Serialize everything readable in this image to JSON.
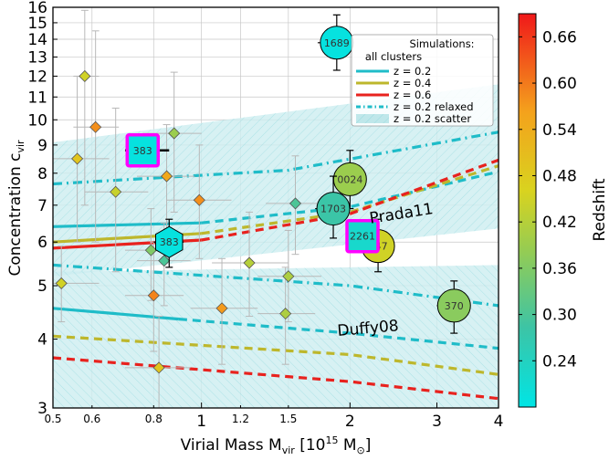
{
  "chart_data": {
    "type": "scatter",
    "xscale": "log",
    "yscale": "log",
    "xlim": [
      0.5,
      4.0
    ],
    "ylim": [
      3.0,
      16.0
    ],
    "xticks": [
      {
        "v": 0.5,
        "label": "0.5",
        "major": false
      },
      {
        "v": 0.6,
        "label": "0.6",
        "major": false
      },
      {
        "v": 0.8,
        "label": "0.8",
        "major": false
      },
      {
        "v": 1.0,
        "label": "1",
        "major": true
      },
      {
        "v": 1.2,
        "label": "1.2",
        "major": false
      },
      {
        "v": 1.5,
        "label": "1.5",
        "major": false
      },
      {
        "v": 2.0,
        "label": "2",
        "major": true
      },
      {
        "v": 3.0,
        "label": "3",
        "major": true
      },
      {
        "v": 4.0,
        "label": "4",
        "major": true
      }
    ],
    "yticks": [
      "3",
      "4",
      "5",
      "6",
      "7",
      "8",
      "9",
      "10",
      "11",
      "12",
      "13",
      "14",
      "15",
      "16"
    ],
    "xlabel": "Virial Mass M",
    "xlabel_sub": "vir",
    "xlabel_unit": " [10",
    "xlabel_exp": "15",
    "xlabel_unit2": " M",
    "xlabel_sun": "⊙",
    "xlabel_end": "]",
    "ylabel": "Concentration  c",
    "ylabel_sub": "vir",
    "colorbar": {
      "label": "Redshift",
      "range": [
        0.18,
        0.69
      ],
      "ticks": [
        "0.24",
        "0.30",
        "0.36",
        "0.42",
        "0.48",
        "0.54",
        "0.60",
        "0.66"
      ]
    },
    "legend": {
      "position": "top-right",
      "title1": "Simulations:",
      "title2": "all clusters",
      "entries": [
        {
          "label": "z = 0.2",
          "color": "#1fbcc8",
          "style": "solid"
        },
        {
          "label": "z = 0.4",
          "color": "#bdb72c",
          "style": "solid"
        },
        {
          "label": "z = 0.6",
          "color": "#e8221e",
          "style": "solid"
        },
        {
          "label": "z = 0.2 relaxed",
          "color": "#1fbcc8",
          "style": "dashdot"
        },
        {
          "label": "z = 0.2 scatter",
          "color": "#bfe7ea",
          "style": "band"
        }
      ]
    },
    "annotations": [
      {
        "text": "Prada11",
        "x": 2.55,
        "y": 6.62,
        "rotate": -9
      },
      {
        "text": "Duffy08",
        "x": 2.18,
        "y": 4.1,
        "rotate": -5
      }
    ],
    "bands": [
      {
        "name": "scatter-upper",
        "color": "#cdeef0",
        "opacity": 0.8,
        "upper": [
          [
            0.5,
            9.1
          ],
          [
            4.0,
            11.6
          ]
        ],
        "lower": [
          [
            0.5,
            5.2
          ],
          [
            4.0,
            6.35
          ]
        ]
      },
      {
        "name": "scatter-lower",
        "color": "#cdeef0",
        "opacity": 0.8,
        "upper": [
          [
            0.5,
            5.3
          ],
          [
            4.0,
            5.45
          ]
        ],
        "lower": [
          [
            0.5,
            3.0
          ],
          [
            4.0,
            3.0
          ]
        ]
      }
    ],
    "curves": [
      {
        "name": "prada-z0.2-relaxed",
        "color": "#1fbcc8",
        "style": "dashdot",
        "points": [
          [
            0.5,
            7.65
          ],
          [
            1.5,
            8.1
          ],
          [
            4.0,
            9.5
          ]
        ]
      },
      {
        "name": "prada-z0.2-solid",
        "color": "#1fbcc8",
        "style": "solid",
        "points": [
          [
            0.5,
            6.4
          ],
          [
            1.0,
            6.5
          ]
        ]
      },
      {
        "name": "prada-z0.2-dash",
        "color": "#1fbcc8",
        "style": "dash",
        "points": [
          [
            1.0,
            6.5
          ],
          [
            2.0,
            6.95
          ],
          [
            4.0,
            8.05
          ]
        ]
      },
      {
        "name": "prada-z0.4-solid",
        "color": "#bdb72c",
        "style": "solid",
        "points": [
          [
            0.5,
            6.0
          ],
          [
            1.0,
            6.22
          ]
        ]
      },
      {
        "name": "prada-z0.4-dash",
        "color": "#bdb72c",
        "style": "dash",
        "points": [
          [
            1.0,
            6.22
          ],
          [
            2.0,
            6.8
          ],
          [
            4.0,
            8.25
          ]
        ]
      },
      {
        "name": "prada-z0.6-solid",
        "color": "#e8221e",
        "style": "solid",
        "points": [
          [
            0.5,
            5.85
          ],
          [
            1.0,
            6.05
          ]
        ]
      },
      {
        "name": "prada-z0.6-dash",
        "color": "#e8221e",
        "style": "dash",
        "points": [
          [
            1.0,
            6.05
          ],
          [
            2.0,
            6.75
          ],
          [
            4.0,
            8.45
          ]
        ]
      },
      {
        "name": "duffy-z0.2-relaxed",
        "color": "#1fbcc8",
        "style": "dashdot",
        "points": [
          [
            0.5,
            5.45
          ],
          [
            2.0,
            5.0
          ],
          [
            4.0,
            4.6
          ]
        ]
      },
      {
        "name": "duffy-z0.2-solid",
        "color": "#1fbcc8",
        "style": "solid",
        "points": [
          [
            0.5,
            4.55
          ],
          [
            0.9,
            4.35
          ]
        ]
      },
      {
        "name": "duffy-z0.2-dash",
        "color": "#1fbcc8",
        "style": "dash",
        "points": [
          [
            0.9,
            4.35
          ],
          [
            2.0,
            4.1
          ],
          [
            4.0,
            3.85
          ]
        ]
      },
      {
        "name": "duffy-z0.4-dash",
        "color": "#bdb72c",
        "style": "dash",
        "points": [
          [
            0.5,
            4.05
          ],
          [
            2.0,
            3.75
          ],
          [
            4.0,
            3.45
          ]
        ]
      },
      {
        "name": "duffy-z0.6-dash",
        "color": "#e8221e",
        "style": "dash",
        "points": [
          [
            0.5,
            3.7
          ],
          [
            2.0,
            3.35
          ],
          [
            4.0,
            3.12
          ]
        ]
      }
    ],
    "diamonds": [
      {
        "x": 0.52,
        "y": 5.05,
        "z": 0.45,
        "xerr": [
          0.5,
          0.62
        ],
        "yerr": [
          4.3,
          5.9
        ]
      },
      {
        "x": 0.56,
        "y": 8.5,
        "z": 0.49,
        "xerr": [
          0.5,
          0.65
        ],
        "yerr": [
          6.0,
          12.0
        ]
      },
      {
        "x": 0.58,
        "y": 12.0,
        "z": 0.45,
        "xerr": [
          0.55,
          0.62
        ],
        "yerr": [
          7.0,
          15.8
        ]
      },
      {
        "x": 0.61,
        "y": 9.7,
        "z": 0.58,
        "xerr": [
          0.55,
          0.68
        ],
        "yerr": [
          6.0,
          14.5
        ]
      },
      {
        "x": 0.67,
        "y": 7.4,
        "z": 0.44,
        "xerr": [
          0.58,
          0.78
        ],
        "yerr": [
          5.3,
          10.5
        ]
      },
      {
        "x": 0.8,
        "y": 4.8,
        "z": 0.59,
        "xerr": [
          0.7,
          0.92
        ],
        "yerr": [
          3.8,
          6.0
        ]
      },
      {
        "x": 0.82,
        "y": 3.55,
        "z": 0.49,
        "xerr": [
          0.7,
          0.95
        ],
        "yerr": [
          3.0,
          4.4
        ]
      },
      {
        "x": 0.79,
        "y": 5.8,
        "z": 0.36,
        "xerr": [
          0.7,
          0.9
        ],
        "yerr": [
          4.7,
          6.9
        ]
      },
      {
        "x": 0.84,
        "y": 5.55,
        "z": 0.3,
        "xerr": [
          0.74,
          0.95
        ],
        "yerr": [
          4.6,
          6.5
        ]
      },
      {
        "x": 0.85,
        "y": 7.9,
        "z": 0.55,
        "xerr": [
          0.74,
          0.97
        ],
        "yerr": [
          6.2,
          9.8
        ]
      },
      {
        "x": 0.88,
        "y": 9.45,
        "z": 0.39,
        "xerr": [
          0.76,
          1.0
        ],
        "yerr": [
          6.8,
          12.2
        ]
      },
      {
        "x": 0.99,
        "y": 7.15,
        "z": 0.58,
        "xerr": [
          0.85,
          1.15
        ],
        "yerr": [
          5.6,
          9.0
        ]
      },
      {
        "x": 1.1,
        "y": 4.55,
        "z": 0.57,
        "xerr": [
          0.95,
          1.3
        ],
        "yerr": [
          3.6,
          5.6
        ]
      },
      {
        "x": 1.25,
        "y": 5.5,
        "z": 0.42,
        "xerr": [
          1.05,
          1.5
        ],
        "yerr": [
          4.4,
          6.8
        ]
      },
      {
        "x": 1.48,
        "y": 4.45,
        "z": 0.41,
        "xerr": [
          1.3,
          1.7
        ],
        "yerr": [
          3.6,
          5.4
        ]
      },
      {
        "x": 1.5,
        "y": 5.2,
        "z": 0.41,
        "xerr": [
          1.3,
          1.75
        ],
        "yerr": [
          4.3,
          6.3
        ]
      },
      {
        "x": 1.55,
        "y": 7.05,
        "z": 0.3,
        "xerr": [
          1.35,
          1.8
        ],
        "yerr": [
          5.7,
          8.6
        ]
      }
    ],
    "clusters": [
      {
        "label": "1689",
        "shape": "circle",
        "x": 1.88,
        "y": 13.8,
        "z": 0.19,
        "yerr": [
          12.3,
          15.5
        ],
        "xerr": [
          1.72,
          2.02
        ],
        "edge": "#000000"
      },
      {
        "label": "0024",
        "shape": "circle",
        "x": 2.0,
        "y": 7.8,
        "z": 0.39,
        "yerr": [
          6.9,
          8.8
        ],
        "xerr": [
          1.85,
          2.15
        ],
        "edge": "#000000"
      },
      {
        "label": "1703",
        "shape": "circle",
        "x": 1.85,
        "y": 6.9,
        "z": 0.28,
        "yerr": [
          6.1,
          7.9
        ],
        "xerr": [
          1.7,
          2.0
        ],
        "edge": "#000000"
      },
      {
        "label": "347",
        "shape": "circle",
        "x": 2.28,
        "y": 5.9,
        "z": 0.45,
        "yerr": [
          5.3,
          6.6
        ],
        "xerr": [
          2.1,
          2.45
        ],
        "edge": "#000000"
      },
      {
        "label": "370",
        "shape": "circle",
        "x": 3.25,
        "y": 4.6,
        "z": 0.37,
        "yerr": [
          4.1,
          5.1
        ],
        "xerr": [
          3.0,
          3.5
        ],
        "edge": "#000000"
      },
      {
        "label": "383",
        "shape": "hexagon",
        "x": 0.86,
        "y": 6.0,
        "z": 0.19,
        "yerr": [
          5.4,
          6.6
        ],
        "xerr": [
          0.8,
          0.92
        ],
        "edge": "#000000"
      },
      {
        "label": "2261",
        "shape": "square",
        "x": 2.12,
        "y": 6.15,
        "z": 0.22,
        "edge": "#ff00ff"
      },
      {
        "label": "383",
        "shape": "square",
        "x": 0.76,
        "y": 8.8,
        "z": 0.19,
        "xerr": [
          0.7,
          0.86
        ],
        "edge": "#ff00ff"
      }
    ]
  }
}
